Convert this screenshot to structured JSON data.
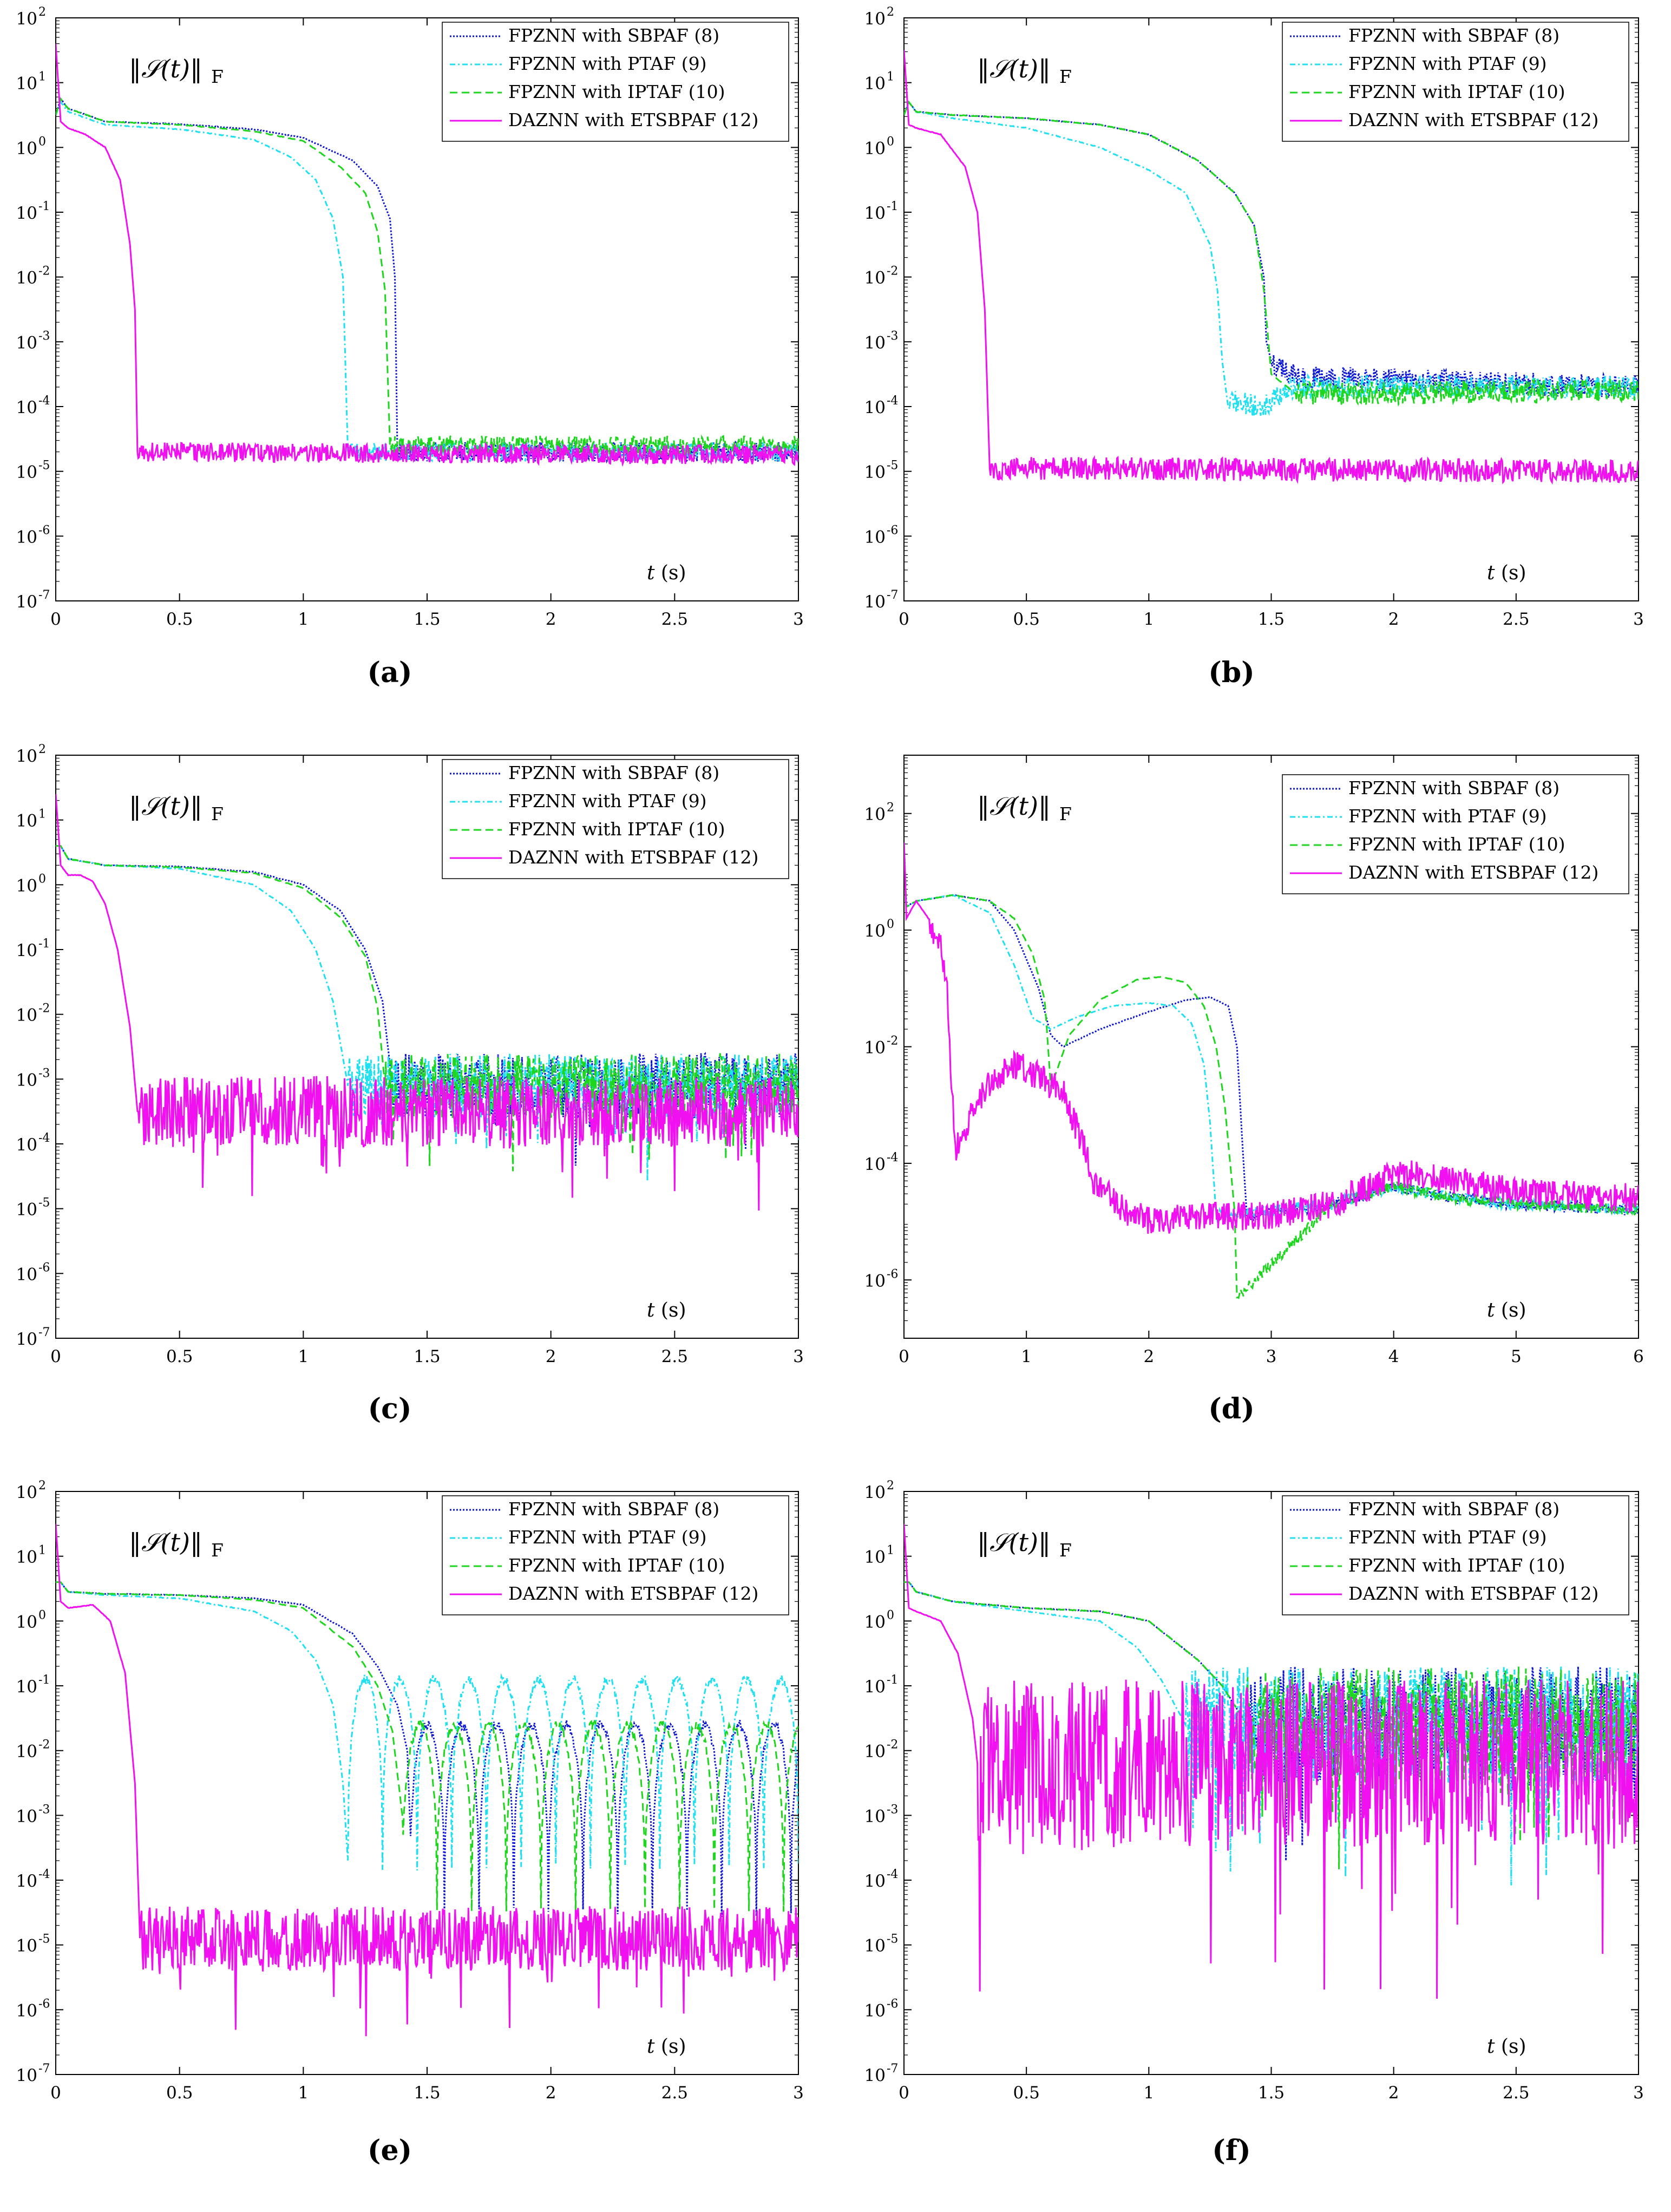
{
  "figure": {
    "norm_label": "‖𝒮(t)‖",
    "norm_subscript": "F",
    "xlabel_var": "t",
    "xlabel_unit": "(s)"
  },
  "legend": [
    {
      "label": "FPZNN with SBPAF (8)",
      "color": "#0a14d4",
      "dash": "3,3"
    },
    {
      "label": "FPZNN with PTAF (9)",
      "color": "#1ee0f0",
      "dash": "10,5,3,5"
    },
    {
      "label": "FPZNN with IPTAF (10)",
      "color": "#1ed61e",
      "dash": "14,8"
    },
    {
      "label": "DAZNN with ETSBPAF (12)",
      "color": "#f010f0",
      "dash": ""
    }
  ],
  "chart_data": [
    {
      "id": "a",
      "caption": "(a)",
      "type": "line",
      "yscale": "log",
      "xlim": [
        0,
        3
      ],
      "ylim_exp": [
        -7,
        2
      ],
      "xticks": [
        "0",
        "0.5",
        "1",
        "1.5",
        "2",
        "2.5",
        "3"
      ],
      "yticks_exp": [
        "-7",
        "-6",
        "-5",
        "-4",
        "-3",
        "-2",
        "-1",
        "0",
        "1",
        "2"
      ],
      "series": [
        {
          "name": "FPZNN with SBPAF (8)",
          "transition": 1.38,
          "x": [
            0,
            0.02,
            0.05,
            0.2,
            0.5,
            0.8,
            1.0,
            1.2,
            1.3,
            1.35,
            1.37,
            1.38,
            3.0
          ],
          "y": [
            0.5,
            0.75,
            0.6,
            0.4,
            0.36,
            0.28,
            0.15,
            -0.2,
            -0.6,
            -1.1,
            -2.0,
            -4.7,
            -4.7
          ],
          "noise": 0.15
        },
        {
          "name": "FPZNN with PTAF (9)",
          "transition": 1.18,
          "x": [
            0,
            0.02,
            0.05,
            0.2,
            0.5,
            0.8,
            0.95,
            1.05,
            1.12,
            1.16,
            1.18,
            3.0
          ],
          "y": [
            0.5,
            0.7,
            0.55,
            0.35,
            0.28,
            0.12,
            -0.15,
            -0.5,
            -1.1,
            -2.0,
            -4.7,
            -4.7
          ],
          "noise": 0.15
        },
        {
          "name": "FPZNN with IPTAF (10)",
          "transition": 1.35,
          "x": [
            0,
            0.02,
            0.05,
            0.2,
            0.5,
            0.8,
            1.0,
            1.15,
            1.25,
            1.3,
            1.33,
            1.35,
            3.0
          ],
          "y": [
            0.5,
            0.75,
            0.6,
            0.4,
            0.35,
            0.25,
            0.1,
            -0.3,
            -0.7,
            -1.3,
            -2.2,
            -4.6,
            -4.6
          ],
          "noise": 0.15
        },
        {
          "name": "DAZNN with ETSBPAF (12)",
          "transition": 0.33,
          "x": [
            0,
            0.02,
            0.05,
            0.12,
            0.2,
            0.26,
            0.3,
            0.32,
            0.33,
            3.0
          ],
          "y": [
            1.6,
            0.4,
            0.3,
            0.2,
            0.0,
            -0.5,
            -1.5,
            -2.5,
            -4.7,
            -4.75
          ],
          "noise": 0.15
        }
      ]
    },
    {
      "id": "b",
      "caption": "(b)",
      "type": "line",
      "yscale": "log",
      "xlim": [
        0,
        3
      ],
      "ylim_exp": [
        -7,
        2
      ],
      "xticks": [
        "0",
        "0.5",
        "1",
        "1.5",
        "2",
        "2.5",
        "3"
      ],
      "yticks_exp": [
        "-7",
        "-6",
        "-5",
        "-4",
        "-3",
        "-2",
        "-1",
        "0",
        "1",
        "2"
      ],
      "series": [
        {
          "name": "FPZNN with SBPAF (8)",
          "transition": 1.5,
          "x": [
            0,
            0.02,
            0.05,
            0.2,
            0.5,
            0.8,
            1.0,
            1.2,
            1.35,
            1.43,
            1.47,
            1.48,
            1.5,
            1.6,
            3.0
          ],
          "y": [
            0.5,
            0.7,
            0.55,
            0.5,
            0.45,
            0.35,
            0.2,
            -0.2,
            -0.7,
            -1.2,
            -2.0,
            -3.0,
            -3.3,
            -3.55,
            -3.7
          ],
          "noise": 0.18
        },
        {
          "name": "FPZNN with PTAF (9)",
          "transition": 1.32,
          "x": [
            0,
            0.02,
            0.05,
            0.2,
            0.5,
            0.8,
            1.0,
            1.15,
            1.25,
            1.28,
            1.3,
            1.32,
            1.45,
            1.6,
            3.0
          ],
          "y": [
            0.5,
            0.7,
            0.55,
            0.45,
            0.3,
            0.0,
            -0.35,
            -0.7,
            -1.5,
            -2.2,
            -3.3,
            -3.9,
            -4.0,
            -3.7,
            -3.7
          ],
          "noise": 0.18
        },
        {
          "name": "FPZNN with IPTAF (10)",
          "transition": 1.6,
          "x": [
            0,
            0.02,
            0.05,
            0.2,
            0.5,
            0.8,
            1.0,
            1.2,
            1.35,
            1.43,
            1.47,
            1.5,
            1.6,
            3.0
          ],
          "y": [
            0.5,
            0.7,
            0.55,
            0.5,
            0.45,
            0.35,
            0.2,
            -0.2,
            -0.7,
            -1.2,
            -2.2,
            -3.5,
            -3.8,
            -3.75
          ],
          "noise": 0.18
        },
        {
          "name": "DAZNN with ETSBPAF (12)",
          "transition": 0.35,
          "x": [
            0,
            0.02,
            0.05,
            0.15,
            0.25,
            0.3,
            0.33,
            0.35,
            3.0
          ],
          "y": [
            1.5,
            0.35,
            0.3,
            0.2,
            -0.3,
            -1.0,
            -2.5,
            -4.95,
            -5.0
          ],
          "noise": 0.18
        }
      ]
    },
    {
      "id": "c",
      "caption": "(c)",
      "type": "line",
      "yscale": "log",
      "xlim": [
        0,
        3
      ],
      "ylim_exp": [
        -7,
        2
      ],
      "xticks": [
        "0",
        "0.5",
        "1",
        "1.5",
        "2",
        "2.5",
        "3"
      ],
      "yticks_exp": [
        "-7",
        "-6",
        "-5",
        "-4",
        "-3",
        "-2",
        "-1",
        "0",
        "1",
        "2"
      ],
      "series": [
        {
          "name": "FPZNN with SBPAF (8)",
          "transition": 1.36,
          "x": [
            0,
            0.02,
            0.05,
            0.2,
            0.5,
            0.8,
            1.0,
            1.15,
            1.25,
            1.32,
            1.36,
            3.0
          ],
          "y": [
            0.6,
            0.6,
            0.4,
            0.3,
            0.28,
            0.2,
            0.0,
            -0.4,
            -1.0,
            -1.8,
            -3.1,
            -3.1
          ],
          "noise": 0.5
        },
        {
          "name": "FPZNN with PTAF (9)",
          "transition": 1.18,
          "x": [
            0,
            0.02,
            0.05,
            0.2,
            0.5,
            0.8,
            0.95,
            1.05,
            1.12,
            1.18,
            3.0
          ],
          "y": [
            0.6,
            0.6,
            0.4,
            0.3,
            0.25,
            0.0,
            -0.4,
            -1.0,
            -1.8,
            -3.1,
            -3.1
          ],
          "noise": 0.5
        },
        {
          "name": "FPZNN with IPTAF (10)",
          "transition": 1.33,
          "x": [
            0,
            0.02,
            0.05,
            0.2,
            0.5,
            0.8,
            1.0,
            1.15,
            1.25,
            1.3,
            1.33,
            3.0
          ],
          "y": [
            0.6,
            0.6,
            0.4,
            0.3,
            0.27,
            0.18,
            -0.05,
            -0.5,
            -1.1,
            -1.9,
            -3.1,
            -3.1
          ],
          "noise": 0.5
        },
        {
          "name": "DAZNN with ETSBPAF (12)",
          "transition": 0.33,
          "x": [
            0,
            0.02,
            0.05,
            0.1,
            0.15,
            0.2,
            0.25,
            0.3,
            0.33,
            3.0
          ],
          "y": [
            1.4,
            0.3,
            0.15,
            0.15,
            0.05,
            -0.3,
            -1.0,
            -2.2,
            -3.5,
            -3.5
          ],
          "noise": 0.55
        }
      ]
    },
    {
      "id": "d",
      "caption": "(d)",
      "type": "line",
      "yscale": "log",
      "xlim": [
        0,
        6
      ],
      "ylim_exp": [
        -7,
        3
      ],
      "xticks": [
        "0",
        "1",
        "2",
        "3",
        "4",
        "5",
        "6"
      ],
      "yticks_exp": [
        "-6",
        "-4",
        "-2",
        "0",
        "2"
      ],
      "series": [
        {
          "name": "FPZNN with SBPAF (8)",
          "transition": 2.8,
          "x": [
            0,
            0.02,
            0.1,
            0.4,
            0.7,
            0.9,
            1.1,
            1.2,
            1.3,
            1.6,
            2.0,
            2.3,
            2.5,
            2.65,
            2.72,
            2.76,
            2.8,
            3.5,
            4.0,
            4.5,
            5.0,
            6.0
          ],
          "y": [
            1.5,
            0.4,
            0.5,
            0.6,
            0.5,
            0.0,
            -1.0,
            -1.8,
            -2.0,
            -1.7,
            -1.4,
            -1.2,
            -1.15,
            -1.3,
            -2.0,
            -3.5,
            -4.9,
            -4.7,
            -4.4,
            -4.6,
            -4.7,
            -4.8
          ],
          "noise": 0.1
        },
        {
          "name": "FPZNN with PTAF (9)",
          "transition": 2.55,
          "x": [
            0,
            0.02,
            0.1,
            0.4,
            0.7,
            0.9,
            1.05,
            1.2,
            1.4,
            1.7,
            2.0,
            2.2,
            2.35,
            2.45,
            2.5,
            2.55,
            3.5,
            4.0,
            4.5,
            5.0,
            6.0
          ],
          "y": [
            1.5,
            0.4,
            0.5,
            0.6,
            0.3,
            -0.6,
            -1.5,
            -1.7,
            -1.5,
            -1.3,
            -1.25,
            -1.3,
            -1.6,
            -2.3,
            -3.3,
            -4.9,
            -4.7,
            -4.4,
            -4.6,
            -4.7,
            -4.8
          ],
          "noise": 0.1
        },
        {
          "name": "FPZNN with IPTAF (10)",
          "transition": 2.72,
          "x": [
            0,
            0.02,
            0.1,
            0.4,
            0.7,
            0.9,
            1.05,
            1.15,
            1.2,
            1.35,
            1.6,
            1.9,
            2.1,
            2.3,
            2.45,
            2.55,
            2.62,
            2.7,
            2.72,
            3.5,
            4.0,
            4.5,
            5.0,
            6.0
          ],
          "y": [
            1.5,
            0.4,
            0.5,
            0.6,
            0.5,
            0.2,
            -0.4,
            -1.2,
            -2.7,
            -1.8,
            -1.2,
            -0.85,
            -0.8,
            -0.9,
            -1.3,
            -2.0,
            -3.0,
            -4.8,
            -6.3,
            -4.7,
            -4.4,
            -4.6,
            -4.7,
            -4.8
          ],
          "noise": 0.1
        },
        {
          "name": "DAZNN with ETSBPAF (12)",
          "transition": 0.2,
          "x": [
            0,
            0.02,
            0.1,
            0.2,
            0.3,
            0.35,
            0.38,
            0.42,
            0.55,
            0.7,
            0.9,
            1.1,
            1.3,
            1.45,
            1.55,
            1.8,
            2.0,
            2.5,
            3.0,
            3.5,
            4.0,
            4.3,
            5.0,
            6.0
          ],
          "y": [
            1.5,
            0.2,
            0.5,
            0.2,
            -0.3,
            -1.0,
            -2.2,
            -3.8,
            -3.2,
            -2.6,
            -2.3,
            -2.5,
            -2.8,
            -3.6,
            -4.3,
            -4.8,
            -5.0,
            -4.9,
            -4.9,
            -4.7,
            -4.2,
            -4.2,
            -4.5,
            -4.6
          ],
          "noise": 0.25
        }
      ]
    },
    {
      "id": "e",
      "caption": "(e)",
      "type": "line",
      "yscale": "log",
      "xlim": [
        0,
        3
      ],
      "ylim_exp": [
        -7,
        2
      ],
      "xticks": [
        "0",
        "0.5",
        "1",
        "1.5",
        "2",
        "2.5",
        "3"
      ],
      "yticks_exp": [
        "-7",
        "-6",
        "-5",
        "-4",
        "-3",
        "-2",
        "-1",
        "0",
        "1",
        "2"
      ],
      "series": [
        {
          "name": "FPZNN with SBPAF (8)",
          "transition": 1.43,
          "oscillate": 1,
          "x": [
            0,
            0.02,
            0.05,
            0.2,
            0.5,
            0.8,
            1.0,
            1.2,
            1.3,
            1.38,
            1.42,
            1.43,
            3.0
          ],
          "y": [
            0.6,
            0.6,
            0.45,
            0.42,
            0.4,
            0.35,
            0.25,
            -0.2,
            -0.7,
            -1.3,
            -2.0,
            -3.0,
            -3.0
          ],
          "noise": 0.0
        },
        {
          "name": "FPZNN with PTAF (9)",
          "transition": 1.18,
          "oscillate": 2,
          "x": [
            0,
            0.02,
            0.05,
            0.2,
            0.5,
            0.8,
            0.95,
            1.05,
            1.12,
            1.16,
            1.18,
            3.0
          ],
          "y": [
            0.6,
            0.6,
            0.45,
            0.4,
            0.35,
            0.15,
            -0.15,
            -0.6,
            -1.3,
            -2.5,
            -3.7,
            -3.7
          ],
          "noise": 0.0
        },
        {
          "name": "FPZNN with IPTAF (10)",
          "transition": 1.4,
          "oscillate": 1,
          "x": [
            0,
            0.02,
            0.05,
            0.2,
            0.5,
            0.8,
            1.0,
            1.2,
            1.3,
            1.36,
            1.4,
            3.0
          ],
          "y": [
            0.6,
            0.6,
            0.45,
            0.42,
            0.4,
            0.33,
            0.2,
            -0.4,
            -1.0,
            -1.7,
            -3.0,
            -3.0
          ],
          "noise": 0.0
        },
        {
          "name": "DAZNN with ETSBPAF (12)",
          "transition": 0.34,
          "x": [
            0,
            0.02,
            0.05,
            0.15,
            0.22,
            0.28,
            0.32,
            0.34,
            3.0
          ],
          "y": [
            1.5,
            0.3,
            0.2,
            0.25,
            0.0,
            -0.8,
            -2.5,
            -4.9,
            -4.9
          ],
          "noise": 0.5
        }
      ]
    },
    {
      "id": "f",
      "caption": "(f)",
      "type": "line",
      "yscale": "log",
      "xlim": [
        0,
        3
      ],
      "ylim_exp": [
        -7,
        2
      ],
      "xticks": [
        "0",
        "0.5",
        "1",
        "1.5",
        "2",
        "2.5",
        "3"
      ],
      "yticks_exp": [
        "-7",
        "-6",
        "-5",
        "-4",
        "-3",
        "-2",
        "-1",
        "0",
        "1",
        "2"
      ],
      "series": [
        {
          "name": "FPZNN with SBPAF (8)",
          "transition": 1.4,
          "x": [
            0,
            0.02,
            0.05,
            0.2,
            0.5,
            0.8,
            1.0,
            1.1,
            1.2,
            1.3,
            1.4,
            3.0
          ],
          "y": [
            0.6,
            0.6,
            0.45,
            0.3,
            0.2,
            0.15,
            0.0,
            -0.3,
            -0.6,
            -1.0,
            -1.6,
            -1.6
          ],
          "noise": 0.9
        },
        {
          "name": "FPZNN with PTAF (9)",
          "transition": 1.15,
          "x": [
            0,
            0.02,
            0.05,
            0.2,
            0.5,
            0.8,
            0.95,
            1.05,
            1.15,
            3.0
          ],
          "y": [
            0.6,
            0.6,
            0.45,
            0.3,
            0.15,
            0.0,
            -0.4,
            -0.9,
            -1.6,
            -1.6
          ],
          "noise": 0.9
        },
        {
          "name": "FPZNN with IPTAF (10)",
          "transition": 1.4,
          "x": [
            0,
            0.02,
            0.05,
            0.2,
            0.5,
            0.8,
            1.0,
            1.1,
            1.2,
            1.3,
            1.4,
            3.0
          ],
          "y": [
            0.6,
            0.6,
            0.45,
            0.3,
            0.2,
            0.15,
            0.0,
            -0.3,
            -0.6,
            -1.0,
            -1.6,
            -1.6
          ],
          "noise": 0.9
        },
        {
          "name": "DAZNN with ETSBPAF (12)",
          "transition": 0.3,
          "x": [
            0,
            0.02,
            0.05,
            0.15,
            0.22,
            0.28,
            0.3,
            3.0
          ],
          "y": [
            1.5,
            0.2,
            0.15,
            0.0,
            -0.5,
            -1.5,
            -2.2,
            -2.2
          ],
          "noise": 1.3
        }
      ]
    }
  ]
}
